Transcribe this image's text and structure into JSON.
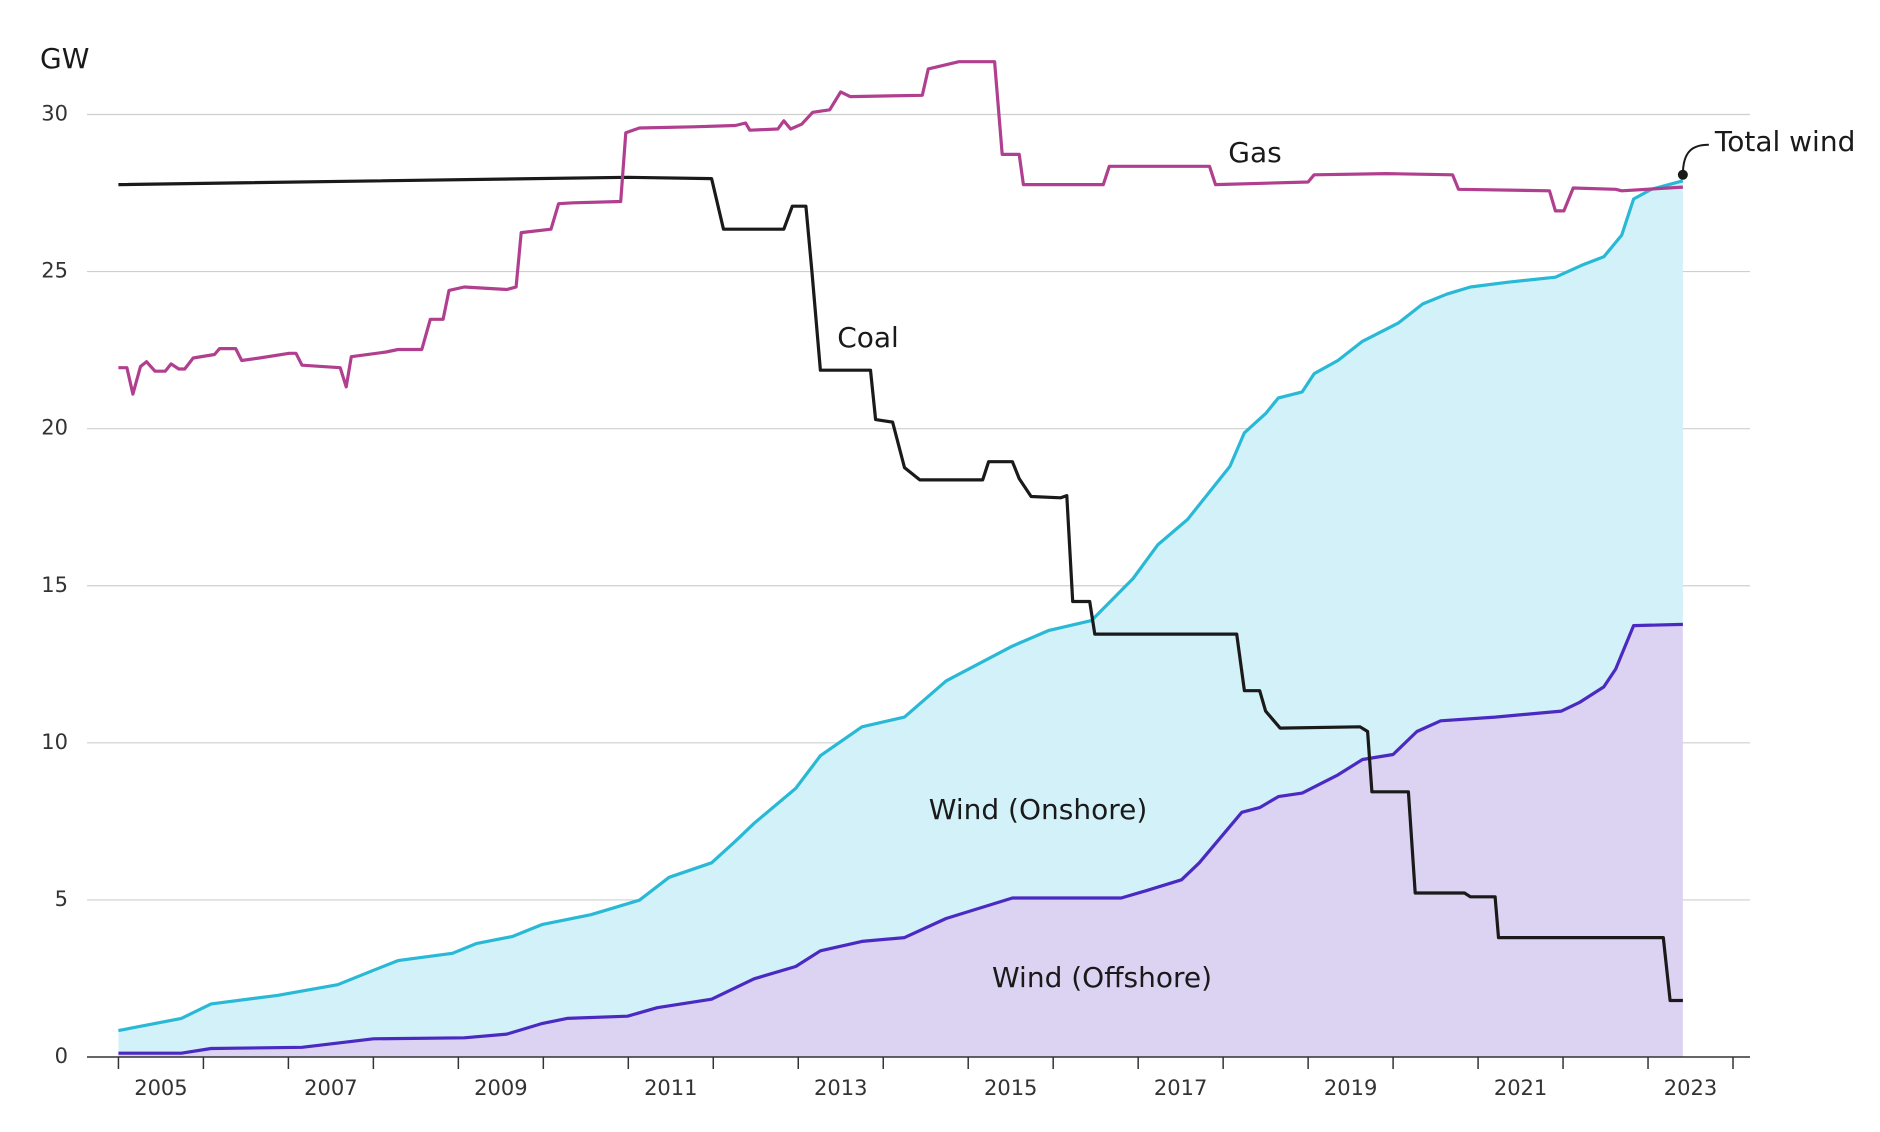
{
  "chart_data": {
    "type": "line",
    "y_label": "GW",
    "xlim": [
      2004.63,
      2024.2
    ],
    "ylim": [
      0,
      32
    ],
    "yticks": [
      0,
      5,
      10,
      15,
      20,
      25,
      30
    ],
    "xticks": [
      {
        "value": 2005.5,
        "label": "2005"
      },
      {
        "value": 2007.5,
        "label": "2007"
      },
      {
        "value": 2009.5,
        "label": "2009"
      },
      {
        "value": 2011.5,
        "label": "2011"
      },
      {
        "value": 2013.5,
        "label": "2013"
      },
      {
        "value": 2015.5,
        "label": "2015"
      },
      {
        "value": 2017.5,
        "label": "2017"
      },
      {
        "value": 2019.5,
        "label": "2019"
      },
      {
        "value": 2021.5,
        "label": "2021"
      },
      {
        "value": 2023.5,
        "label": "2023"
      }
    ],
    "xtick_marks": [
      2005,
      2006,
      2007,
      2008,
      2009,
      2010,
      2011,
      2012,
      2013,
      2014,
      2015,
      2016,
      2017,
      2018,
      2019,
      2020,
      2021,
      2022,
      2023,
      2024
    ],
    "grid": true,
    "annotations": [
      "Wind (Onshore)"
    ],
    "series": [
      {
        "name": "Wind (Offshore)",
        "color": "#4b2ac2",
        "fill": "#dcd3f3",
        "x": [
          2005,
          2005.74,
          2006.09,
          2007.16,
          2008.0,
          2009.07,
          2009.57,
          2009.99,
          2010.28,
          2010.99,
          2011.34,
          2011.98,
          2012.48,
          2012.97,
          2013.26,
          2013.75,
          2014.25,
          2014.74,
          2015.52,
          2016.8,
          2017.09,
          2017.51,
          2017.72,
          2018.22,
          2018.43,
          2018.65,
          2018.93,
          2019.35,
          2019.64,
          2020.0,
          2020.28,
          2020.56,
          2021.2,
          2021.98,
          2022.19,
          2022.48,
          2022.62,
          2022.83,
          2023.41
        ],
        "values": [
          0.12,
          0.12,
          0.27,
          0.31,
          0.58,
          0.61,
          0.73,
          1.07,
          1.23,
          1.3,
          1.57,
          1.84,
          2.49,
          2.88,
          3.38,
          3.68,
          3.8,
          4.41,
          5.06,
          5.06,
          5.29,
          5.64,
          6.18,
          7.79,
          7.94,
          8.29,
          8.4,
          8.98,
          9.47,
          9.63,
          10.36,
          10.7,
          10.82,
          11.01,
          11.28,
          11.78,
          12.35,
          13.73,
          13.77
        ]
      },
      {
        "name": "Total wind",
        "color": "#29b9d6",
        "fill": "#d2f1f8",
        "x": [
          2005,
          2005.74,
          2006.09,
          2006.87,
          2007.58,
          2008.0,
          2008.29,
          2008.93,
          2009.21,
          2009.64,
          2009.99,
          2010.56,
          2011.13,
          2011.48,
          2011.98,
          2012.26,
          2012.48,
          2012.97,
          2013.26,
          2013.75,
          2014.25,
          2014.74,
          2015.52,
          2015.95,
          2016.45,
          2016.94,
          2017.23,
          2017.58,
          2018.08,
          2018.25,
          2018.5,
          2018.65,
          2018.93,
          2019.07,
          2019.35,
          2019.64,
          2020.06,
          2020.35,
          2020.63,
          2020.91,
          2021.34,
          2021.91,
          2022.22,
          2022.48,
          2022.69,
          2022.83,
          2023.04,
          2023.41
        ],
        "values": [
          0.84,
          1.23,
          1.69,
          1.96,
          2.3,
          2.76,
          3.07,
          3.3,
          3.61,
          3.84,
          4.22,
          4.53,
          4.99,
          5.72,
          6.18,
          6.87,
          7.44,
          8.55,
          9.59,
          10.51,
          10.82,
          11.97,
          13.08,
          13.58,
          13.89,
          15.23,
          16.3,
          17.11,
          18.8,
          19.87,
          20.48,
          20.98,
          21.17,
          21.75,
          22.17,
          22.78,
          23.36,
          23.97,
          24.28,
          24.51,
          24.66,
          24.82,
          25.2,
          25.47,
          26.16,
          27.31,
          27.62,
          27.89
        ]
      },
      {
        "name": "Coal",
        "color": "#1a1a1a",
        "x": [
          2005,
          2010.99,
          2011.98,
          2012.12,
          2012.83,
          2012.93,
          2013.09,
          2013.16,
          2013.26,
          2013.85,
          2013.91,
          2014.11,
          2014.25,
          2014.43,
          2015.17,
          2015.24,
          2015.52,
          2015.6,
          2015.74,
          2016.09,
          2016.16,
          2016.23,
          2016.43,
          2016.49,
          2018.16,
          2018.25,
          2018.43,
          2018.5,
          2018.67,
          2019.61,
          2019.7,
          2019.75,
          2020.18,
          2020.26,
          2020.84,
          2020.91,
          2021.2,
          2021.24,
          2023.18,
          2023.26,
          2023.41
        ],
        "values": [
          27.77,
          28.0,
          27.96,
          26.35,
          26.35,
          27.08,
          27.08,
          25.01,
          21.86,
          21.86,
          20.29,
          20.21,
          18.76,
          18.37,
          18.37,
          18.95,
          18.95,
          18.41,
          17.84,
          17.8,
          17.87,
          14.5,
          14.5,
          13.46,
          13.46,
          11.66,
          11.66,
          11.01,
          10.47,
          10.51,
          10.36,
          8.44,
          8.44,
          5.22,
          5.22,
          5.1,
          5.1,
          3.8,
          3.8,
          1.8,
          1.8
        ]
      },
      {
        "name": "Gas",
        "color": "#b0408f",
        "x": [
          2005,
          2005.1,
          2005.17,
          2005.26,
          2005.33,
          2005.43,
          2005.55,
          2005.62,
          2005.71,
          2005.78,
          2005.88,
          2006.13,
          2006.19,
          2006.38,
          2006.45,
          2006.66,
          2007.01,
          2007.09,
          2007.16,
          2007.61,
          2007.68,
          2007.74,
          2008.15,
          2008.29,
          2008.57,
          2008.67,
          2008.82,
          2008.89,
          2009.07,
          2009.57,
          2009.68,
          2009.74,
          2010.09,
          2010.18,
          2010.35,
          2010.91,
          2010.97,
          2011.13,
          2011.77,
          2012.26,
          2012.38,
          2012.43,
          2012.76,
          2012.83,
          2012.91,
          2013.04,
          2013.17,
          2013.37,
          2013.5,
          2013.61,
          2014.46,
          2014.53,
          2014.89,
          2015.31,
          2015.4,
          2015.6,
          2015.65,
          2016.59,
          2016.66,
          2017.84,
          2017.91,
          2019.0,
          2019.07,
          2019.92,
          2020.7,
          2020.77,
          2021.84,
          2021.91,
          2022.01,
          2022.12,
          2022.62,
          2022.69,
          2023.41
        ],
        "values": [
          21.94,
          21.94,
          21.1,
          21.98,
          22.13,
          21.83,
          21.83,
          22.06,
          21.9,
          21.9,
          22.25,
          22.36,
          22.55,
          22.55,
          22.17,
          22.25,
          22.4,
          22.4,
          22.02,
          21.94,
          21.33,
          22.29,
          22.44,
          22.52,
          22.52,
          23.48,
          23.48,
          24.4,
          24.51,
          24.43,
          24.51,
          26.24,
          26.35,
          27.16,
          27.19,
          27.23,
          29.42,
          29.57,
          29.61,
          29.65,
          29.73,
          29.5,
          29.54,
          29.8,
          29.54,
          29.69,
          30.07,
          30.15,
          30.72,
          30.57,
          30.61,
          31.45,
          31.68,
          31.68,
          28.73,
          28.73,
          27.77,
          27.77,
          28.35,
          28.35,
          27.77,
          27.85,
          28.08,
          28.12,
          28.08,
          27.62,
          27.57,
          26.93,
          26.93,
          27.66,
          27.62,
          27.57,
          27.69
        ]
      }
    ]
  }
}
